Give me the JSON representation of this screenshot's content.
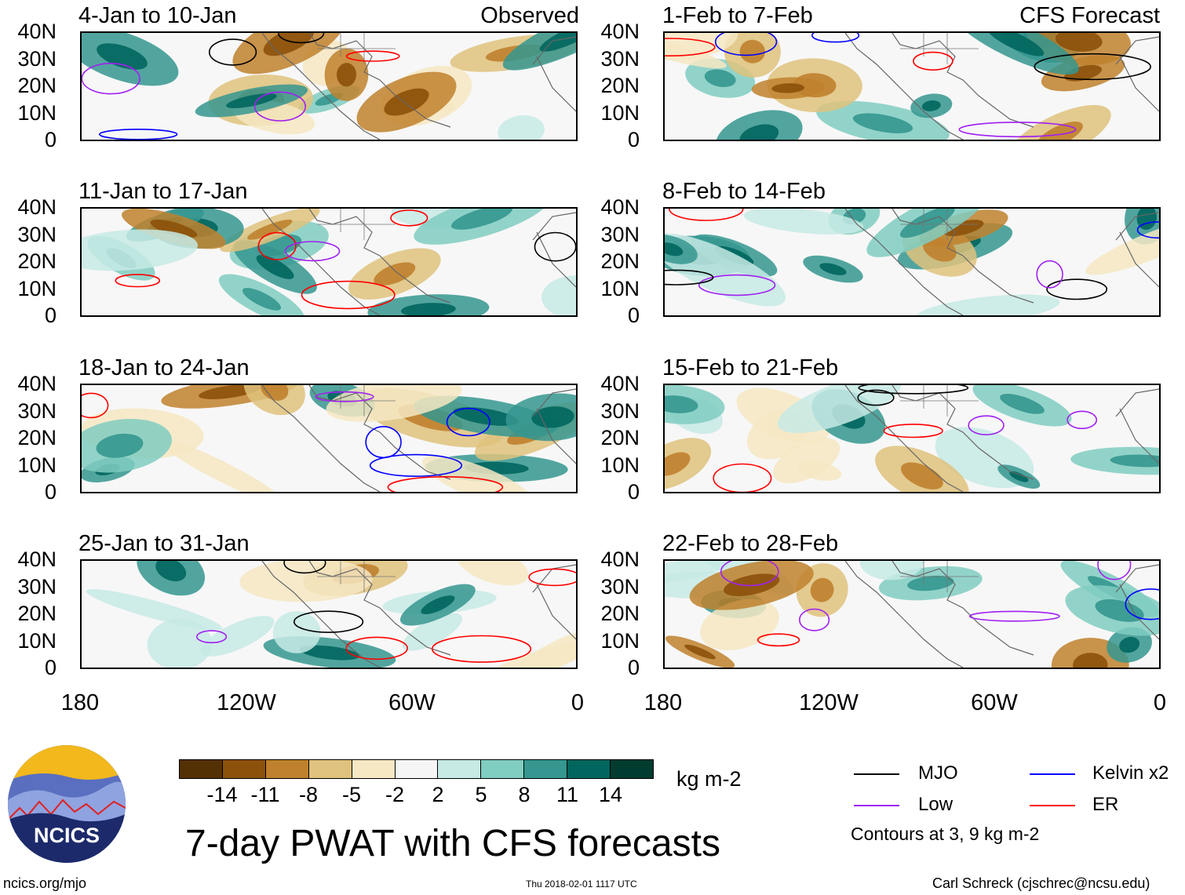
{
  "panels": {
    "observed_tag": "Observed",
    "forecast_tag": "CFS Forecast",
    "left": [
      "4-Jan to 10-Jan",
      "11-Jan to 17-Jan",
      "18-Jan to 24-Jan",
      "25-Jan to 31-Jan"
    ],
    "right": [
      "1-Feb to 7-Feb",
      "8-Feb to 14-Feb",
      "15-Feb to 21-Feb",
      "22-Feb to 28-Feb"
    ]
  },
  "axes": {
    "lat_labels": [
      "40N",
      "30N",
      "20N",
      "10N",
      "0"
    ],
    "lon_labels": [
      "180",
      "120W",
      "60W",
      "0"
    ]
  },
  "colorbar": {
    "labels": [
      "-14",
      "-11",
      "-8",
      "-5",
      "-2",
      "2",
      "5",
      "8",
      "11",
      "14"
    ],
    "colors": [
      "#543005",
      "#8c510a",
      "#bf812d",
      "#dfc27d",
      "#f6e8c3",
      "#f5f5f5",
      "#c7eae5",
      "#80cdc1",
      "#35978f",
      "#01665e",
      "#003c30"
    ],
    "units": "kg m-2"
  },
  "legend": {
    "mjo": "MJO",
    "kelvin": "Kelvin x2",
    "low": "Low",
    "er": "ER",
    "contours_note": "Contours at 3, 9 kg m-2",
    "colors": {
      "mjo": "#000000",
      "kelvin": "#0000ff",
      "low": "#a020f0",
      "er": "#ff0000"
    }
  },
  "title": "7-day PWAT with CFS forecasts",
  "footer": {
    "website": "ncics.org/mjo",
    "timestamp": "Thu 2018-02-01 1117 UTC",
    "author": "Carl Schreck (cjschrec@ncsu.edu)"
  },
  "logo": {
    "text": "NCICS"
  }
}
